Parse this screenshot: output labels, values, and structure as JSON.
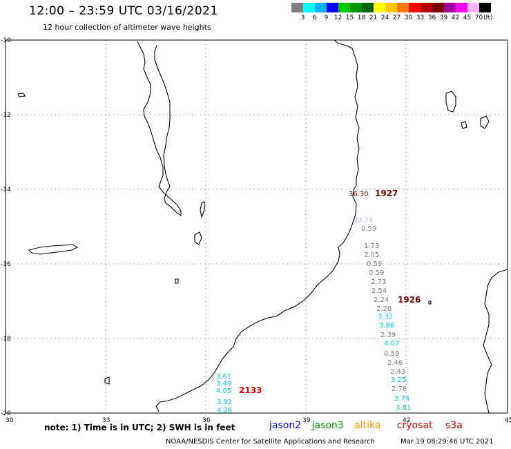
{
  "header": {
    "title": "12:00 – 23:59 UTC 03/16/2021",
    "subtitle": "12 hour collection of altimeter wave heights"
  },
  "legend": {
    "colors": [
      "#808080",
      "#00ffff",
      "#00b4ff",
      "#0000ff",
      "#00c800",
      "#009600",
      "#006400",
      "#ffff00",
      "#ffc800",
      "#ff7800",
      "#ff0000",
      "#b40000",
      "#780000",
      "#a000a0",
      "#ff00ff",
      "#ffb4ff",
      "#000000"
    ],
    "labels": [
      "3",
      "6",
      "9",
      "12",
      "15",
      "18",
      "21",
      "24",
      "27",
      "30",
      "33",
      "36",
      "39",
      "42",
      "45",
      "70"
    ],
    "unit": "(ft)"
  },
  "axes": {
    "x_ticks": [
      "30",
      "33",
      "36",
      "39",
      "42",
      "45"
    ],
    "y_ticks": [
      "-10",
      "-12",
      "-14",
      "-16",
      "-18",
      "-20"
    ]
  },
  "observations": {
    "east_track": [
      {
        "text": "36.30",
        "color": "#780000"
      },
      {
        "text": "42.74",
        "color": "#b4b4ff"
      },
      {
        "text": "0.59",
        "color": "#808080"
      },
      {
        "text": "1.73",
        "color": "#808080"
      },
      {
        "text": "2.05",
        "color": "#808080"
      },
      {
        "text": "0.59",
        "color": "#808080"
      },
      {
        "text": "0.59",
        "color": "#808080"
      },
      {
        "text": "2.73",
        "color": "#808080"
      },
      {
        "text": "2.54",
        "color": "#808080"
      },
      {
        "text": "2.24",
        "color": "#808080"
      },
      {
        "text": "2.26",
        "color": "#808080"
      },
      {
        "text": "3.32",
        "color": "#00c8e6"
      },
      {
        "text": "3.86",
        "color": "#00c8e6"
      },
      {
        "text": "2.39",
        "color": "#808080"
      },
      {
        "text": "4.07",
        "color": "#00c8e6"
      },
      {
        "text": "0.59",
        "color": "#808080"
      },
      {
        "text": "2.46",
        "color": "#808080"
      },
      {
        "text": "2.43",
        "color": "#808080"
      },
      {
        "text": "3.25",
        "color": "#00c8e6"
      },
      {
        "text": "2.78",
        "color": "#808080"
      },
      {
        "text": "3.74",
        "color": "#00c8e6"
      },
      {
        "text": "3.81",
        "color": "#00c8e6"
      }
    ],
    "west_track": [
      {
        "text": "3.61",
        "color": "#00c8e6"
      },
      {
        "text": "3.49",
        "color": "#00c8e6"
      },
      {
        "text": "4.05",
        "color": "#00c8e6"
      },
      {
        "text": "3.92",
        "color": "#00c8e6"
      },
      {
        "text": "4.26",
        "color": "#00c8e6"
      }
    ],
    "pass_times": [
      {
        "text": "1927",
        "color": "#780000"
      },
      {
        "text": "1926",
        "color": "#780000"
      },
      {
        "text": "2133",
        "color": "#e60000"
      }
    ]
  },
  "footer": {
    "note": "note:  1) Time is in UTC;  2) SWH is in feet",
    "satellites": [
      {
        "name": "jason2",
        "color": "#0000ff"
      },
      {
        "name": "jason3",
        "color": "#009600"
      },
      {
        "name": "altika",
        "color": "#ff9600"
      },
      {
        "name": "cryosat",
        "color": "#e60000"
      },
      {
        "name": "s3a",
        "color": "#b40000"
      }
    ],
    "credit": "NOAA/NESDIS Center for Satellite Applications and Research",
    "timestamp": "Mar 19 08:29:46 UTC 2021"
  }
}
